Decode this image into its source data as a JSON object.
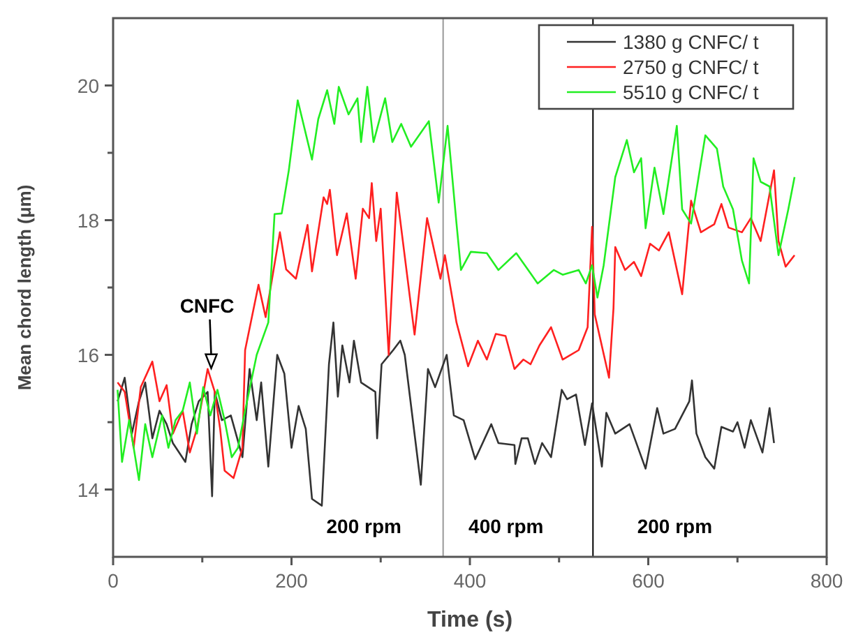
{
  "chart_data": {
    "type": "line",
    "xlabel": "Time  (s)",
    "ylabel": "Mean chord length  (μm)",
    "xlim": [
      0,
      800
    ],
    "ylim": [
      13,
      21
    ],
    "xticks": [
      0,
      {
        "value": 100,
        "label": null
      },
      200,
      {
        "value": 300,
        "label": null
      },
      400,
      {
        "value": 500,
        "label": null
      },
      600,
      {
        "value": 700,
        "label": null
      },
      800
    ],
    "yticks": [
      14,
      {
        "value": 15,
        "label": null
      },
      16,
      {
        "value": 17,
        "label": null
      },
      18,
      {
        "value": 19,
        "label": null
      },
      20
    ],
    "grid": false,
    "legend": "top right",
    "line_style": "solid",
    "marker": "none",
    "ref_lines": [
      {
        "axis": "x",
        "value": 370,
        "color": "#999999"
      },
      {
        "axis": "x",
        "value": 538,
        "color": "#000000"
      }
    ],
    "annotations": [
      {
        "text": "CNFC",
        "x": 110,
        "y": 15.8
      },
      "200 rpm",
      "400 rpm",
      "200 rpm"
    ],
    "series": [
      {
        "name": "1380 g CNFC/ t",
        "color": "#333333",
        "x": [
          5,
          13,
          21,
          29,
          36,
          44,
          52,
          60,
          67,
          81,
          88,
          96,
          106,
          111,
          114,
          122,
          132,
          145,
          153,
          161,
          166,
          174,
          184,
          192,
          200,
          208,
          216,
          223,
          234,
          242,
          247,
          252,
          257,
          265,
          270,
          278,
          294,
          296,
          301,
          314,
          322,
          327,
          345,
          353,
          361,
          374,
          382,
          393,
          406,
          424,
          432,
          450,
          451,
          458,
          465,
          473,
          481,
          491,
          503,
          509,
          519,
          529,
          537,
          548,
          553,
          563,
          579,
          597,
          610,
          617,
          630,
          646,
          649,
          654,
          664,
          674,
          682,
          695,
          700,
          708,
          715,
          728,
          736,
          741
        ],
        "values": [
          15.31,
          15.66,
          14.83,
          15.31,
          15.59,
          14.76,
          15.17,
          14.97,
          14.69,
          14.41,
          14.97,
          15.31,
          15.45,
          13.9,
          15.45,
          15.03,
          15.1,
          14.48,
          15.79,
          15.03,
          15.59,
          14.34,
          16.0,
          15.72,
          14.62,
          15.24,
          14.9,
          13.86,
          13.76,
          15.86,
          16.48,
          15.38,
          16.14,
          15.59,
          16.21,
          15.59,
          15.45,
          14.76,
          15.86,
          16.07,
          16.21,
          16.0,
          14.07,
          15.79,
          15.52,
          16.0,
          15.1,
          15.03,
          14.45,
          14.97,
          14.69,
          14.66,
          14.38,
          14.76,
          14.76,
          14.38,
          14.69,
          14.48,
          15.48,
          15.34,
          15.41,
          14.66,
          15.28,
          14.34,
          15.14,
          14.83,
          14.97,
          14.31,
          15.21,
          14.83,
          14.9,
          15.31,
          15.62,
          14.83,
          14.48,
          14.31,
          14.93,
          14.86,
          15.0,
          14.62,
          15.03,
          14.55,
          15.21,
          14.69
        ]
      },
      {
        "name": "2750 g CNFC/ t",
        "color": "#ff2020",
        "x": [
          5,
          13,
          23,
          31,
          44,
          52,
          60,
          67,
          78,
          86,
          94,
          106,
          114,
          120,
          125,
          135,
          145,
          148,
          163,
          171,
          187,
          194,
          205,
          218,
          223,
          236,
          240,
          243,
          251,
          262,
          272,
          280,
          287,
          290,
          295,
          300,
          309,
          318,
          338,
          352,
          367,
          372,
          385,
          398,
          409,
          419,
          429,
          440,
          450,
          460,
          468,
          478,
          491,
          504,
          522,
          532,
          537,
          540,
          556,
          561,
          563,
          574,
          584,
          592,
          602,
          612,
          623,
          638,
          648,
          659,
          674,
          682,
          690,
          705,
          715,
          726,
          741,
          746,
          754,
          764
        ],
        "values": [
          15.59,
          15.45,
          14.62,
          15.52,
          15.9,
          15.31,
          15.55,
          14.83,
          15.17,
          14.55,
          14.9,
          15.79,
          15.45,
          14.9,
          14.28,
          14.17,
          14.62,
          16.07,
          17.04,
          16.56,
          17.82,
          17.27,
          17.13,
          17.93,
          17.24,
          18.34,
          18.24,
          18.45,
          17.48,
          18.1,
          17.13,
          18.17,
          18.03,
          18.55,
          17.69,
          18.17,
          16.0,
          18.41,
          16.3,
          18.03,
          17.13,
          17.48,
          16.48,
          15.83,
          16.21,
          15.93,
          16.31,
          16.28,
          15.79,
          15.93,
          15.86,
          16.14,
          16.41,
          15.93,
          16.07,
          16.41,
          17.9,
          16.6,
          15.66,
          16.69,
          17.6,
          17.26,
          17.38,
          17.17,
          17.65,
          17.55,
          17.82,
          16.9,
          18.29,
          17.82,
          17.94,
          18.24,
          17.89,
          17.82,
          18.03,
          17.69,
          18.74,
          17.69,
          17.31,
          17.48
        ]
      },
      {
        "name": "5510 g CNFC/ t",
        "color": "#22ee22",
        "x": [
          5,
          10,
          18,
          29,
          36,
          44,
          55,
          62,
          70,
          78,
          86,
          94,
          101,
          109,
          117,
          125,
          133,
          140,
          148,
          161,
          174,
          181,
          189,
          197,
          207,
          223,
          230,
          240,
          248,
          253,
          264,
          274,
          278,
          285,
          292,
          305,
          313,
          323,
          334,
          354,
          365,
          375,
          385,
          390,
          401,
          419,
          432,
          452,
          476,
          494,
          504,
          522,
          530,
          537,
          543,
          550,
          563,
          576,
          584,
          592,
          597,
          607,
          617,
          632,
          638,
          648,
          664,
          677,
          684,
          695,
          705,
          713,
          718,
          726,
          736,
          746,
          757,
          764
        ],
        "values": [
          15.48,
          14.41,
          15.03,
          14.14,
          14.97,
          14.48,
          15.1,
          14.62,
          15.03,
          15.17,
          15.59,
          14.83,
          15.52,
          15.1,
          15.48,
          15.03,
          14.48,
          14.62,
          15.17,
          16.0,
          16.48,
          18.09,
          18.1,
          18.74,
          19.78,
          18.9,
          19.5,
          19.93,
          19.43,
          19.98,
          19.57,
          19.81,
          19.16,
          19.98,
          19.16,
          19.81,
          19.16,
          19.43,
          19.09,
          19.47,
          18.26,
          19.4,
          17.95,
          17.26,
          17.53,
          17.51,
          17.26,
          17.51,
          17.06,
          17.26,
          17.19,
          17.26,
          17.06,
          17.33,
          16.85,
          17.33,
          18.64,
          19.19,
          18.71,
          18.92,
          17.88,
          18.78,
          18.09,
          19.4,
          18.16,
          17.95,
          19.26,
          19.06,
          18.5,
          18.16,
          17.4,
          17.06,
          18.92,
          18.57,
          18.5,
          17.48,
          18.16,
          18.64
        ]
      }
    ]
  }
}
